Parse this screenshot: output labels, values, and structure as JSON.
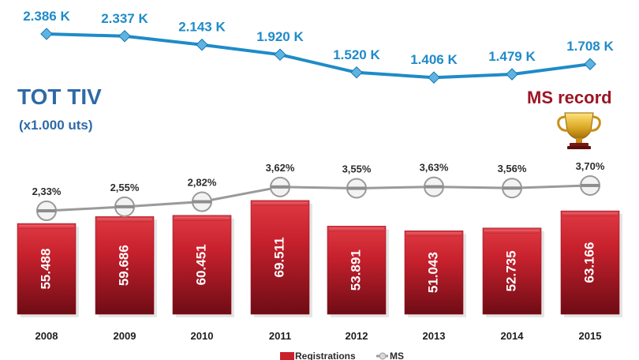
{
  "chart_data": {
    "type": "bar",
    "title": "TOT TIV",
    "subtitle": "(x1.000 uts)",
    "annotation": "MS record",
    "categories": [
      "2008",
      "2009",
      "2010",
      "2011",
      "2012",
      "2013",
      "2014",
      "2015"
    ],
    "tot_tiv": {
      "values": [
        2.386,
        2.337,
        2.143,
        1.92,
        1.52,
        1.406,
        1.479,
        1.708
      ],
      "labels": [
        "2.386 K",
        "2.337 K",
        "2.143 K",
        "1.920 K",
        "1.520 K",
        "1.406 K",
        "1.479 K",
        "1.708 K"
      ]
    },
    "series": [
      {
        "name": "Registrations",
        "type": "bar",
        "values": [
          55488,
          59686,
          60451,
          69511,
          53891,
          51043,
          52735,
          63166
        ],
        "labels": [
          "55.488",
          "59.686",
          "60.451",
          "69.511",
          "53.891",
          "51.043",
          "52.735",
          "63.166"
        ]
      },
      {
        "name": "MS",
        "type": "line",
        "values": [
          2.33,
          2.55,
          2.82,
          3.62,
          3.55,
          3.63,
          3.56,
          3.7
        ],
        "labels": [
          "2,33%",
          "2,55%",
          "2,82%",
          "3,62%",
          "3,55%",
          "3,63%",
          "3,56%",
          "3,70%"
        ]
      }
    ],
    "legend": [
      "Registrations",
      "MS"
    ],
    "colors": {
      "tiv_line": "#1f8bc8",
      "ms_line": "#9a9a9a",
      "bar_top": "#d62a36",
      "bar_bottom": "#7b0f18",
      "title": "#2e6aa8",
      "record": "#9d1524",
      "trophy": "#d9a321"
    },
    "grid": false,
    "legend_position": "bottom-center"
  }
}
